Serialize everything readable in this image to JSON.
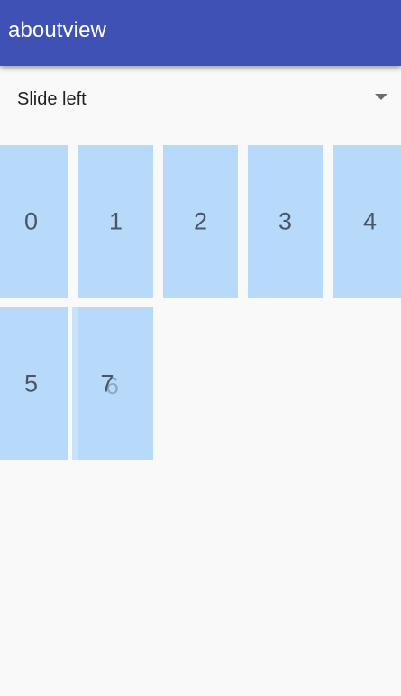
{
  "colors": {
    "primary": "#3f51b5",
    "tile": "#b8dafa",
    "background": "#f8f9f8"
  },
  "app_bar": {
    "title": "aboutview"
  },
  "spinner": {
    "selected": "Slide left",
    "icon": "dropdown-arrow-icon"
  },
  "tiles": [
    "0",
    "1",
    "2",
    "3",
    "4",
    "5",
    "7"
  ],
  "animating_tile": {
    "label": "6"
  }
}
